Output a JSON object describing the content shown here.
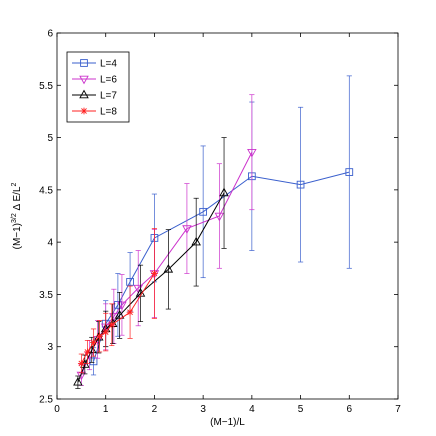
{
  "chart_data": {
    "type": "line",
    "xlabel": "(M−1)/L",
    "ylabel_base": "(M−1)",
    "ylabel_sup1": "3/2",
    "ylabel_mid": " Δ E/L",
    "ylabel_sup2": "2",
    "xlim": [
      0,
      7
    ],
    "ylim": [
      2.5,
      6
    ],
    "xticks": [
      0,
      1,
      2,
      3,
      4,
      5,
      6,
      7
    ],
    "yticks": [
      2.5,
      3,
      3.5,
      4,
      4.5,
      5,
      5.5,
      6
    ],
    "xtick_labels": [
      "0",
      "1",
      "2",
      "3",
      "4",
      "5",
      "6",
      "7"
    ],
    "ytick_labels": [
      "2.5",
      "3",
      "3.5",
      "4",
      "4.5",
      "5",
      "5.5",
      "6"
    ],
    "grid": false,
    "legend_position": "top-left",
    "series": [
      {
        "name": "L=4",
        "color": "#3a5fcd",
        "marker": "square",
        "x": [
          0.75,
          1.0,
          1.25,
          1.5,
          2.0,
          3.0,
          4.0,
          5.0,
          6.0
        ],
        "y": [
          2.86,
          3.22,
          3.4,
          3.62,
          4.04,
          4.29,
          4.63,
          4.55,
          4.67
        ],
        "err": [
          0.13,
          0.22,
          0.3,
          0.28,
          0.42,
          0.63,
          0.71,
          0.74,
          0.92
        ]
      },
      {
        "name": "L=6",
        "color": "#cc33cc",
        "marker": "triangle-down",
        "x": [
          0.5,
          0.667,
          0.833,
          1.0,
          1.167,
          1.333,
          1.667,
          2.0,
          2.667,
          3.333,
          4.0
        ],
        "y": [
          2.73,
          2.92,
          3.07,
          3.19,
          3.29,
          3.4,
          3.56,
          3.7,
          4.13,
          4.25,
          4.86
        ],
        "err": [
          0.1,
          0.14,
          0.18,
          0.22,
          0.26,
          0.29,
          0.36,
          0.42,
          0.43,
          0.5,
          0.55
        ]
      },
      {
        "name": "L=7",
        "color": "#000000",
        "marker": "triangle-up",
        "x": [
          0.429,
          0.571,
          0.714,
          0.857,
          1.0,
          1.143,
          1.286,
          1.714,
          2.286,
          2.857,
          3.429
        ],
        "y": [
          2.66,
          2.83,
          2.97,
          3.09,
          3.17,
          3.22,
          3.3,
          3.51,
          3.74,
          4.0,
          4.47
        ],
        "err": [
          0.06,
          0.09,
          0.12,
          0.15,
          0.17,
          0.19,
          0.22,
          0.27,
          0.38,
          0.42,
          0.53
        ]
      },
      {
        "name": "L=8",
        "color": "#ff2020",
        "marker": "star",
        "x": [
          0.5,
          0.625,
          0.75,
          0.875,
          1.0,
          1.125,
          1.5,
          2.0
        ],
        "y": [
          2.84,
          2.95,
          3.04,
          3.1,
          3.14,
          3.21,
          3.33,
          3.7
        ],
        "err": [
          0.09,
          0.11,
          0.13,
          0.15,
          0.18,
          0.2,
          0.25,
          0.43
        ]
      }
    ]
  }
}
